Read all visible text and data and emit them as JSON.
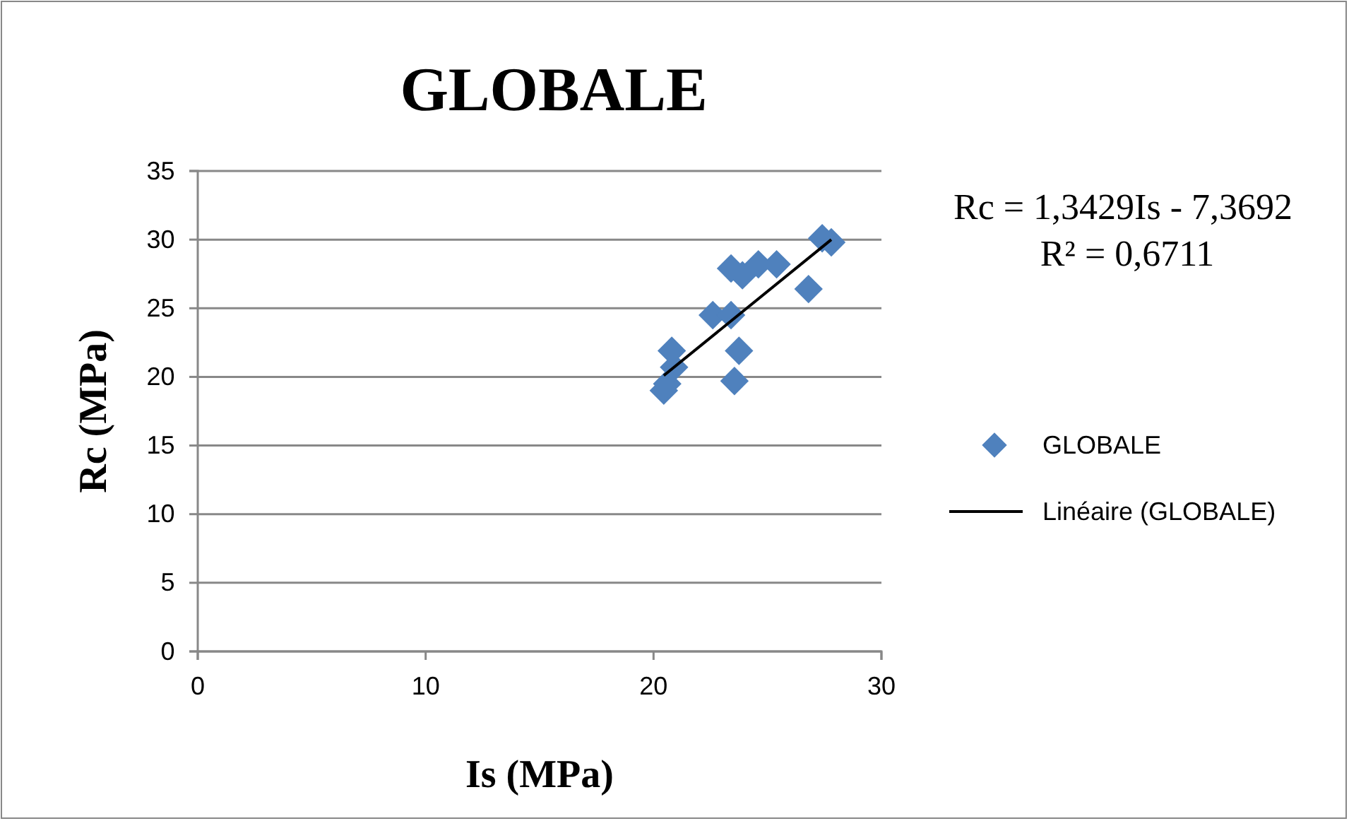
{
  "chart_data": {
    "type": "scatter",
    "title": "GLOBALE",
    "xlabel": "Is (MPa)",
    "ylabel": "Rc (MPa)",
    "xlim": [
      0,
      30
    ],
    "xticks": [
      0,
      10,
      20,
      30
    ],
    "ylim": [
      0,
      35
    ],
    "yticks": [
      0,
      5,
      10,
      15,
      20,
      25,
      30,
      35
    ],
    "grid": "y",
    "legend": "right",
    "series": [
      {
        "name": "GLOBALE",
        "color": "#4f81bd",
        "type": "scatter",
        "marker": "diamond",
        "x": [
          20.45,
          20.6,
          20.9,
          20.8,
          22.6,
          23.4,
          23.4,
          23.9,
          24.6,
          25.4,
          26.8,
          27.4,
          27.8,
          23.75,
          23.55
        ],
        "values": [
          19.0,
          19.5,
          20.7,
          21.9,
          24.5,
          24.5,
          27.9,
          27.4,
          28.2,
          28.2,
          26.4,
          30.1,
          29.8,
          21.9,
          19.7
        ]
      },
      {
        "name": "Linéaire (GLOBALE)",
        "color": "#000000",
        "type": "line",
        "marker": "none",
        "x": [
          20.45,
          27.8
        ],
        "values": [
          20.1,
          30.0
        ]
      }
    ],
    "annotations": [
      "Rc = 1,3429Is - 7,3692",
      "R² = 0,6711"
    ]
  }
}
